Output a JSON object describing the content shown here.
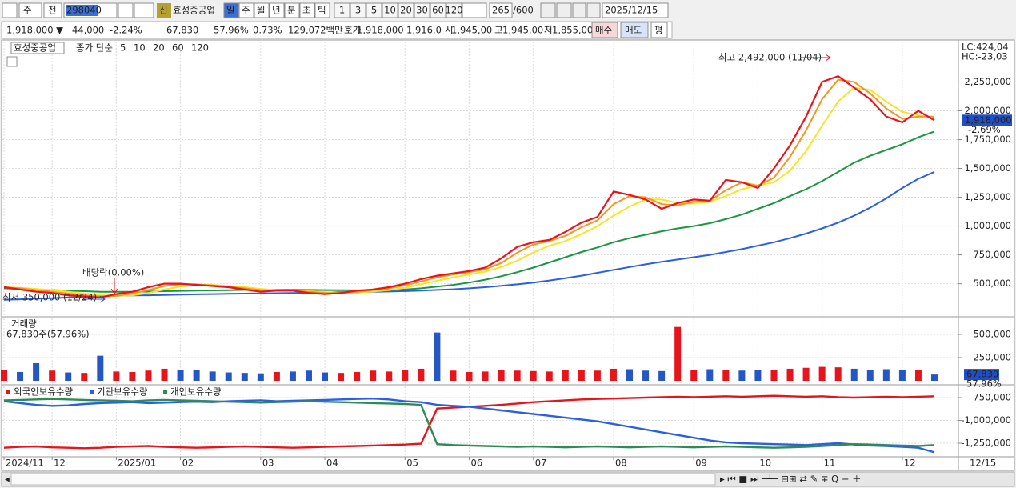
{
  "toolbar": {
    "market": "주",
    "prev": "전",
    "code": "298040",
    "badge": "신",
    "name": "효성중공업",
    "periods": [
      "일",
      "주",
      "월",
      "년",
      "분",
      "초",
      "틱"
    ],
    "intervals": [
      "1",
      "3",
      "5",
      "10",
      "20",
      "30",
      "60",
      "120"
    ],
    "count": "265",
    "max": "/600",
    "date": "2025/12/15"
  },
  "quote": {
    "price": "1,918,000 ▼",
    "change": "44,000",
    "rate": "-2.24%",
    "volume": "67,830",
    "vol_ratio": "57.96%",
    "turnover": "0.73%",
    "amount": "129,072백만",
    "bid_label": "호가",
    "bid1": "1,918,000",
    "bid2": "1,916,0",
    "open_label": "시",
    "open": "1,945,00",
    "high_label": "고",
    "high": "1,945,00",
    "low_label": "저",
    "low": "1,855,00",
    "buy": "매수",
    "sell": "매도",
    "avg": "평"
  },
  "chart_data": [
    {
      "type": "line",
      "title": "효성중공업",
      "legend_prefix": "종가 단순",
      "categories": [
        "2024/11",
        null,
        null,
        "12",
        null,
        null,
        null,
        "2025/01",
        null,
        null,
        null,
        "02",
        null,
        null,
        null,
        null,
        "03",
        null,
        null,
        null,
        "04",
        null,
        null,
        null,
        null,
        "05",
        null,
        null,
        null,
        "06",
        null,
        null,
        null,
        "07",
        null,
        null,
        null,
        null,
        "08",
        null,
        null,
        null,
        null,
        "09",
        null,
        null,
        null,
        "10",
        null,
        null,
        null,
        "11",
        null,
        null,
        null,
        null,
        "12",
        null,
        null
      ],
      "x_end_label": "12/15",
      "series": [
        {
          "name": "5",
          "color": "#e8141c",
          "values": [
            470000,
            450000,
            430000,
            420000,
            400000,
            390000,
            380000,
            410000,
            430000,
            470000,
            500000,
            500000,
            490000,
            480000,
            470000,
            450000,
            430000,
            440000,
            440000,
            420000,
            410000,
            420000,
            440000,
            450000,
            470000,
            500000,
            540000,
            570000,
            590000,
            610000,
            640000,
            720000,
            820000,
            860000,
            880000,
            950000,
            1030000,
            1080000,
            1300000,
            1270000,
            1230000,
            1150000,
            1200000,
            1230000,
            1220000,
            1400000,
            1380000,
            1330000,
            1500000,
            1700000,
            1950000,
            2250000,
            2300000,
            2200000,
            2100000,
            1950000,
            1900000,
            2000000,
            1918000
          ]
        },
        {
          "name": "10",
          "color": "#f7941d",
          "values": [
            470000,
            460000,
            445000,
            430000,
            415000,
            400000,
            390000,
            395000,
            415000,
            445000,
            480000,
            495000,
            495000,
            485000,
            475000,
            460000,
            445000,
            440000,
            440000,
            430000,
            420000,
            418000,
            430000,
            445000,
            460000,
            485000,
            520000,
            555000,
            580000,
            600000,
            625000,
            680000,
            770000,
            840000,
            870000,
            915000,
            990000,
            1050000,
            1190000,
            1260000,
            1250000,
            1190000,
            1180000,
            1210000,
            1220000,
            1310000,
            1380000,
            1350000,
            1420000,
            1600000,
            1830000,
            2100000,
            2270000,
            2250000,
            2150000,
            2020000,
            1930000,
            1950000,
            1950000
          ]
        },
        {
          "name": "20",
          "color": "#f5e61e",
          "values": [
            470000,
            465000,
            455000,
            445000,
            430000,
            415000,
            400000,
            395000,
            400000,
            420000,
            450000,
            475000,
            490000,
            490000,
            480000,
            470000,
            455000,
            445000,
            440000,
            435000,
            428000,
            420000,
            422000,
            432000,
            445000,
            465000,
            495000,
            525000,
            555000,
            580000,
            605000,
            645000,
            700000,
            770000,
            830000,
            870000,
            930000,
            1000000,
            1090000,
            1170000,
            1230000,
            1230000,
            1200000,
            1195000,
            1210000,
            1260000,
            1320000,
            1350000,
            1380000,
            1480000,
            1650000,
            1870000,
            2080000,
            2200000,
            2180000,
            2080000,
            1990000,
            1960000,
            1940000
          ]
        },
        {
          "name": "60",
          "color": "#1a9641",
          "values": [
            460000,
            455000,
            450000,
            445000,
            440000,
            435000,
            430000,
            430000,
            430000,
            432000,
            435000,
            438000,
            440000,
            442000,
            444000,
            446000,
            448000,
            448000,
            447000,
            446000,
            445000,
            444000,
            443000,
            443000,
            445000,
            450000,
            460000,
            475000,
            490000,
            510000,
            535000,
            565000,
            600000,
            640000,
            685000,
            730000,
            775000,
            815000,
            860000,
            895000,
            925000,
            955000,
            980000,
            1000000,
            1025000,
            1060000,
            1100000,
            1150000,
            1200000,
            1260000,
            1320000,
            1390000,
            1470000,
            1550000,
            1610000,
            1660000,
            1710000,
            1770000,
            1820000
          ]
        },
        {
          "name": "120",
          "color": "#2b5fe0",
          "values": [
            360000,
            365000,
            370000,
            375000,
            380000,
            385000,
            390000,
            395000,
            398000,
            400000,
            402000,
            405000,
            408000,
            410000,
            412000,
            414000,
            416000,
            418000,
            420000,
            422000,
            424000,
            426000,
            428000,
            430000,
            432000,
            436000,
            440000,
            446000,
            452000,
            460000,
            470000,
            482000,
            495000,
            510000,
            528000,
            548000,
            570000,
            595000,
            620000,
            645000,
            668000,
            690000,
            710000,
            730000,
            750000,
            775000,
            800000,
            830000,
            860000,
            895000,
            935000,
            980000,
            1030000,
            1090000,
            1160000,
            1240000,
            1330000,
            1410000,
            1470000
          ]
        }
      ],
      "ylim": [
        220000,
        2600000
      ],
      "yticks": [
        {
          "value": 500000,
          "label": "500,000"
        },
        {
          "value": 750000,
          "label": "750,000"
        },
        {
          "value": 1000000,
          "label": "1,000,000"
        },
        {
          "value": 1250000,
          "label": "1,250,000"
        },
        {
          "value": 1500000,
          "label": "1,500,000"
        },
        {
          "value": 1750000,
          "label": "1,750,000"
        },
        {
          "value": 2000000,
          "label": "2,000,000"
        },
        {
          "value": 2250000,
          "label": "2,250,000"
        }
      ],
      "grid": true,
      "last": {
        "value": 1918000,
        "label": "1,918,000"
      },
      "last_change": "-2.69%",
      "lc": "LC:424,04",
      "hc": "HC:-23,03",
      "high_note": "최고 2,492,000 (11/04)",
      "low_note": "최저 350,000 (12/24)",
      "dividend_note": "배당락(0.00%)"
    },
    {
      "type": "bar",
      "title": "거래량",
      "subtitle": "67,830주(57.96%)",
      "values": [
        120000,
        95000,
        190000,
        110000,
        90000,
        85000,
        270000,
        100000,
        95000,
        110000,
        130000,
        120000,
        115000,
        100000,
        90000,
        85000,
        80000,
        95000,
        100000,
        110000,
        90000,
        85000,
        95000,
        110000,
        100000,
        120000,
        130000,
        520000,
        110000,
        95000,
        100000,
        120000,
        110000,
        105000,
        100000,
        115000,
        120000,
        110000,
        130000,
        125000,
        110000,
        105000,
        580000,
        120000,
        125000,
        115000,
        110000,
        120000,
        115000,
        130000,
        140000,
        150000,
        145000,
        130000,
        120000,
        125000,
        115000,
        120000,
        67830
      ],
      "colors": [
        "#e8141c",
        "#2457c5",
        "#2457c5",
        "#e8141c",
        "#2457c5",
        "#e8141c",
        "#2457c5",
        "#e8141c",
        "#e8141c",
        "#e8141c",
        "#e8141c",
        "#2457c5",
        "#2457c5",
        "#2457c5",
        "#2457c5",
        "#2457c5",
        "#2457c5",
        "#e8141c",
        "#2457c5",
        "#2457c5",
        "#2457c5",
        "#e8141c",
        "#e8141c",
        "#e8141c",
        "#e8141c",
        "#e8141c",
        "#e8141c",
        "#2457c5",
        "#e8141c",
        "#e8141c",
        "#e8141c",
        "#e8141c",
        "#e8141c",
        "#e8141c",
        "#e8141c",
        "#e8141c",
        "#e8141c",
        "#e8141c",
        "#e8141c",
        "#2457c5",
        "#2457c5",
        "#2457c5",
        "#e8141c",
        "#e8141c",
        "#2457c5",
        "#e8141c",
        "#2457c5",
        "#2457c5",
        "#e8141c",
        "#e8141c",
        "#e8141c",
        "#e8141c",
        "#e8141c",
        "#2457c5",
        "#2457c5",
        "#2457c5",
        "#2457c5",
        "#e8141c",
        "#2457c5"
      ],
      "ylim": [
        0,
        672000
      ],
      "yticks": [
        {
          "value": 250000,
          "label": "250,000"
        },
        {
          "value": 500000,
          "label": "500,000"
        }
      ],
      "last": {
        "value": 67830,
        "label": "67,830"
      },
      "last_ratio": "57.96%"
    },
    {
      "type": "line",
      "series": [
        {
          "name": "외국인보유수량",
          "color": "#e8141c",
          "values": [
            -1300000,
            -1290000,
            -1285000,
            -1295000,
            -1300000,
            -1305000,
            -1300000,
            -1290000,
            -1285000,
            -1280000,
            -1290000,
            -1295000,
            -1300000,
            -1295000,
            -1290000,
            -1285000,
            -1290000,
            -1295000,
            -1300000,
            -1295000,
            -1290000,
            -1285000,
            -1280000,
            -1275000,
            -1270000,
            -1265000,
            -1255000,
            -870000,
            -860000,
            -850000,
            -840000,
            -830000,
            -815000,
            -800000,
            -790000,
            -780000,
            -770000,
            -765000,
            -760000,
            -755000,
            -750000,
            -745000,
            -740000,
            -745000,
            -740000,
            -735000,
            -740000,
            -735000,
            -730000,
            -735000,
            -740000,
            -735000,
            -745000,
            -750000,
            -745000,
            -740000,
            -745000,
            -740000,
            -735000
          ]
        },
        {
          "name": "기관보유수량",
          "color": "#2b5fe0",
          "values": [
            -790000,
            -810000,
            -830000,
            -840000,
            -835000,
            -820000,
            -810000,
            -805000,
            -800000,
            -810000,
            -805000,
            -800000,
            -795000,
            -800000,
            -790000,
            -785000,
            -780000,
            -790000,
            -785000,
            -780000,
            -775000,
            -770000,
            -765000,
            -760000,
            -770000,
            -790000,
            -800000,
            -830000,
            -840000,
            -850000,
            -870000,
            -890000,
            -910000,
            -930000,
            -950000,
            -970000,
            -990000,
            -1010000,
            -1040000,
            -1070000,
            -1100000,
            -1130000,
            -1160000,
            -1190000,
            -1220000,
            -1240000,
            -1250000,
            -1255000,
            -1260000,
            -1265000,
            -1270000,
            -1260000,
            -1250000,
            -1265000,
            -1275000,
            -1280000,
            -1290000,
            -1300000,
            -1350000
          ]
        },
        {
          "name": "개인보유수량",
          "color": "#2e8b57",
          "values": [
            -780000,
            -775000,
            -770000,
            -765000,
            -770000,
            -775000,
            -780000,
            -785000,
            -790000,
            -780000,
            -775000,
            -780000,
            -785000,
            -790000,
            -795000,
            -800000,
            -805000,
            -800000,
            -795000,
            -790000,
            -795000,
            -800000,
            -805000,
            -810000,
            -815000,
            -820000,
            -830000,
            -1260000,
            -1270000,
            -1275000,
            -1280000,
            -1285000,
            -1290000,
            -1285000,
            -1290000,
            -1295000,
            -1290000,
            -1285000,
            -1290000,
            -1295000,
            -1290000,
            -1285000,
            -1290000,
            -1295000,
            -1290000,
            -1285000,
            -1290000,
            -1295000,
            -1300000,
            -1295000,
            -1290000,
            -1280000,
            -1270000,
            -1260000,
            -1265000,
            -1270000,
            -1275000,
            -1280000,
            -1270000
          ]
        }
      ],
      "ylim": [
        -1390000,
        -627000
      ],
      "yticks": [
        {
          "value": -750000,
          "label": "-750,000"
        },
        {
          "value": -1000000,
          "label": "-1,000,000"
        },
        {
          "value": -1250000,
          "label": "-1,250,000"
        }
      ]
    }
  ]
}
